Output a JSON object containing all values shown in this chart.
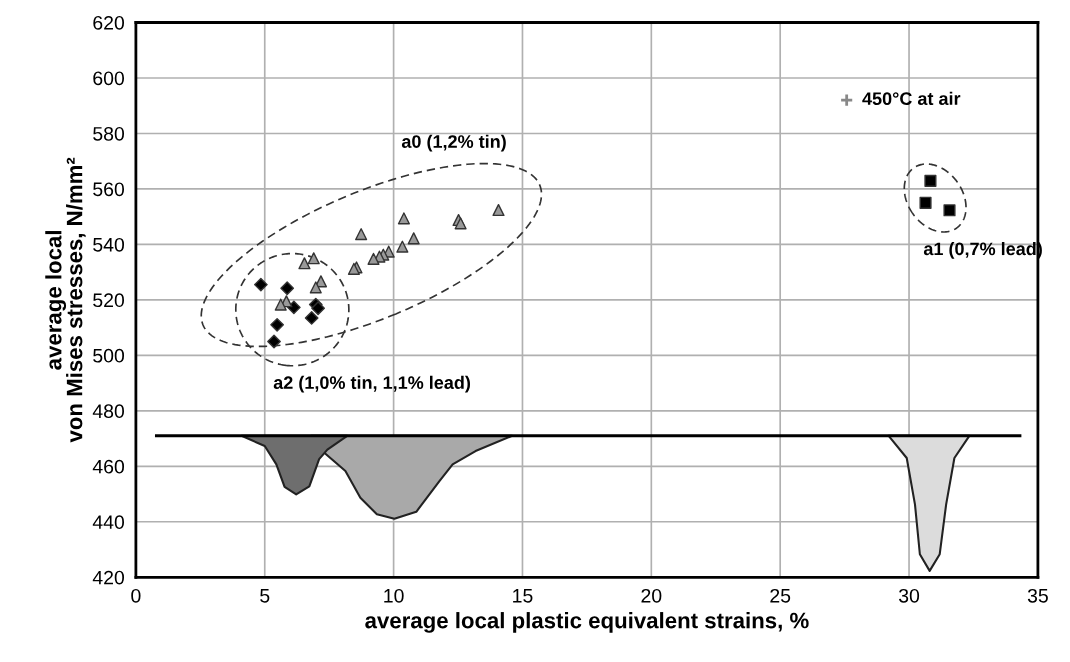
{
  "chart_data": {
    "type": "scatter",
    "xlabel": "average local plastic equivalent strains, %",
    "ylabel": "average local\nvon Mises stresses, N/mm²",
    "xlim": [
      0,
      35
    ],
    "xticks": [
      0,
      5,
      10,
      15,
      20,
      25,
      30,
      35
    ],
    "ylim": [
      420,
      620
    ],
    "yticks": [
      420,
      440,
      460,
      480,
      500,
      520,
      540,
      560,
      580,
      600,
      620
    ],
    "grid": true,
    "series": [
      {
        "name": "a2 (1,0% tin, 1,1% lead)",
        "marker": "diamond",
        "color": "#000000",
        "x": [
          4.85,
          5.87,
          6.13,
          6.98,
          7.07,
          6.82,
          5.48,
          5.36
        ],
        "values": [
          525.5,
          524.2,
          517.3,
          518.3,
          517,
          513.5,
          511,
          505
        ]
      },
      {
        "name": "a0 (1,2% tin)",
        "marker": "triangle",
        "color": "#999999",
        "x": [
          14.07,
          12.52,
          12.6,
          10.4,
          8.74,
          10.78,
          10.34,
          9.81,
          9.6,
          9.45,
          9.22,
          8.56,
          8.46,
          6.9,
          6.54,
          7.18,
          6.98,
          5.84,
          5.62
        ],
        "values": [
          552.4,
          548.8,
          547.6,
          549.4,
          543.7,
          542.2,
          539.2,
          537.4,
          536.3,
          535.6,
          534.8,
          531.7,
          531.2,
          535,
          533.2,
          526.7,
          524.5,
          519.5,
          518.3
        ]
      },
      {
        "name": "a1 (0,7% lead)",
        "marker": "square",
        "color": "#000000",
        "x": [
          30.83,
          30.64,
          31.57
        ],
        "values": [
          562.9,
          555,
          552.3
        ]
      },
      {
        "type": "area",
        "color": "#a9a9a9",
        "x": [
          6.8,
          7.31,
          8.13,
          8.71,
          9.35,
          10.03,
          10.88,
          11.77,
          12.29,
          13.18,
          14.6
        ],
        "values": [
          471,
          464.9,
          458.3,
          448.7,
          442.7,
          441.1,
          443.6,
          454.6,
          460.7,
          465.5,
          471
        ]
      },
      {
        "type": "area",
        "color": "#6e6e6e",
        "x": [
          4.1,
          5.0,
          5.45,
          5.77,
          6.22,
          6.73,
          7.11,
          7.43,
          8.2
        ],
        "values": [
          471,
          467.3,
          460.7,
          452.6,
          449.9,
          452.8,
          462.6,
          466,
          471
        ]
      },
      {
        "type": "area",
        "color": "#dcdcdc",
        "x": [
          29.21,
          29.91,
          30.23,
          30.42,
          30.8,
          31.19,
          31.44,
          31.76,
          32.34
        ],
        "values": [
          471,
          463,
          446.3,
          428.3,
          422.3,
          428.3,
          446.3,
          463,
          471
        ]
      },
      {
        "type": "line",
        "color": "#000000",
        "x": [
          0.8,
          34.3
        ],
        "values": [
          471,
          471
        ]
      }
    ],
    "annotations": [
      "450°C at air"
    ]
  }
}
